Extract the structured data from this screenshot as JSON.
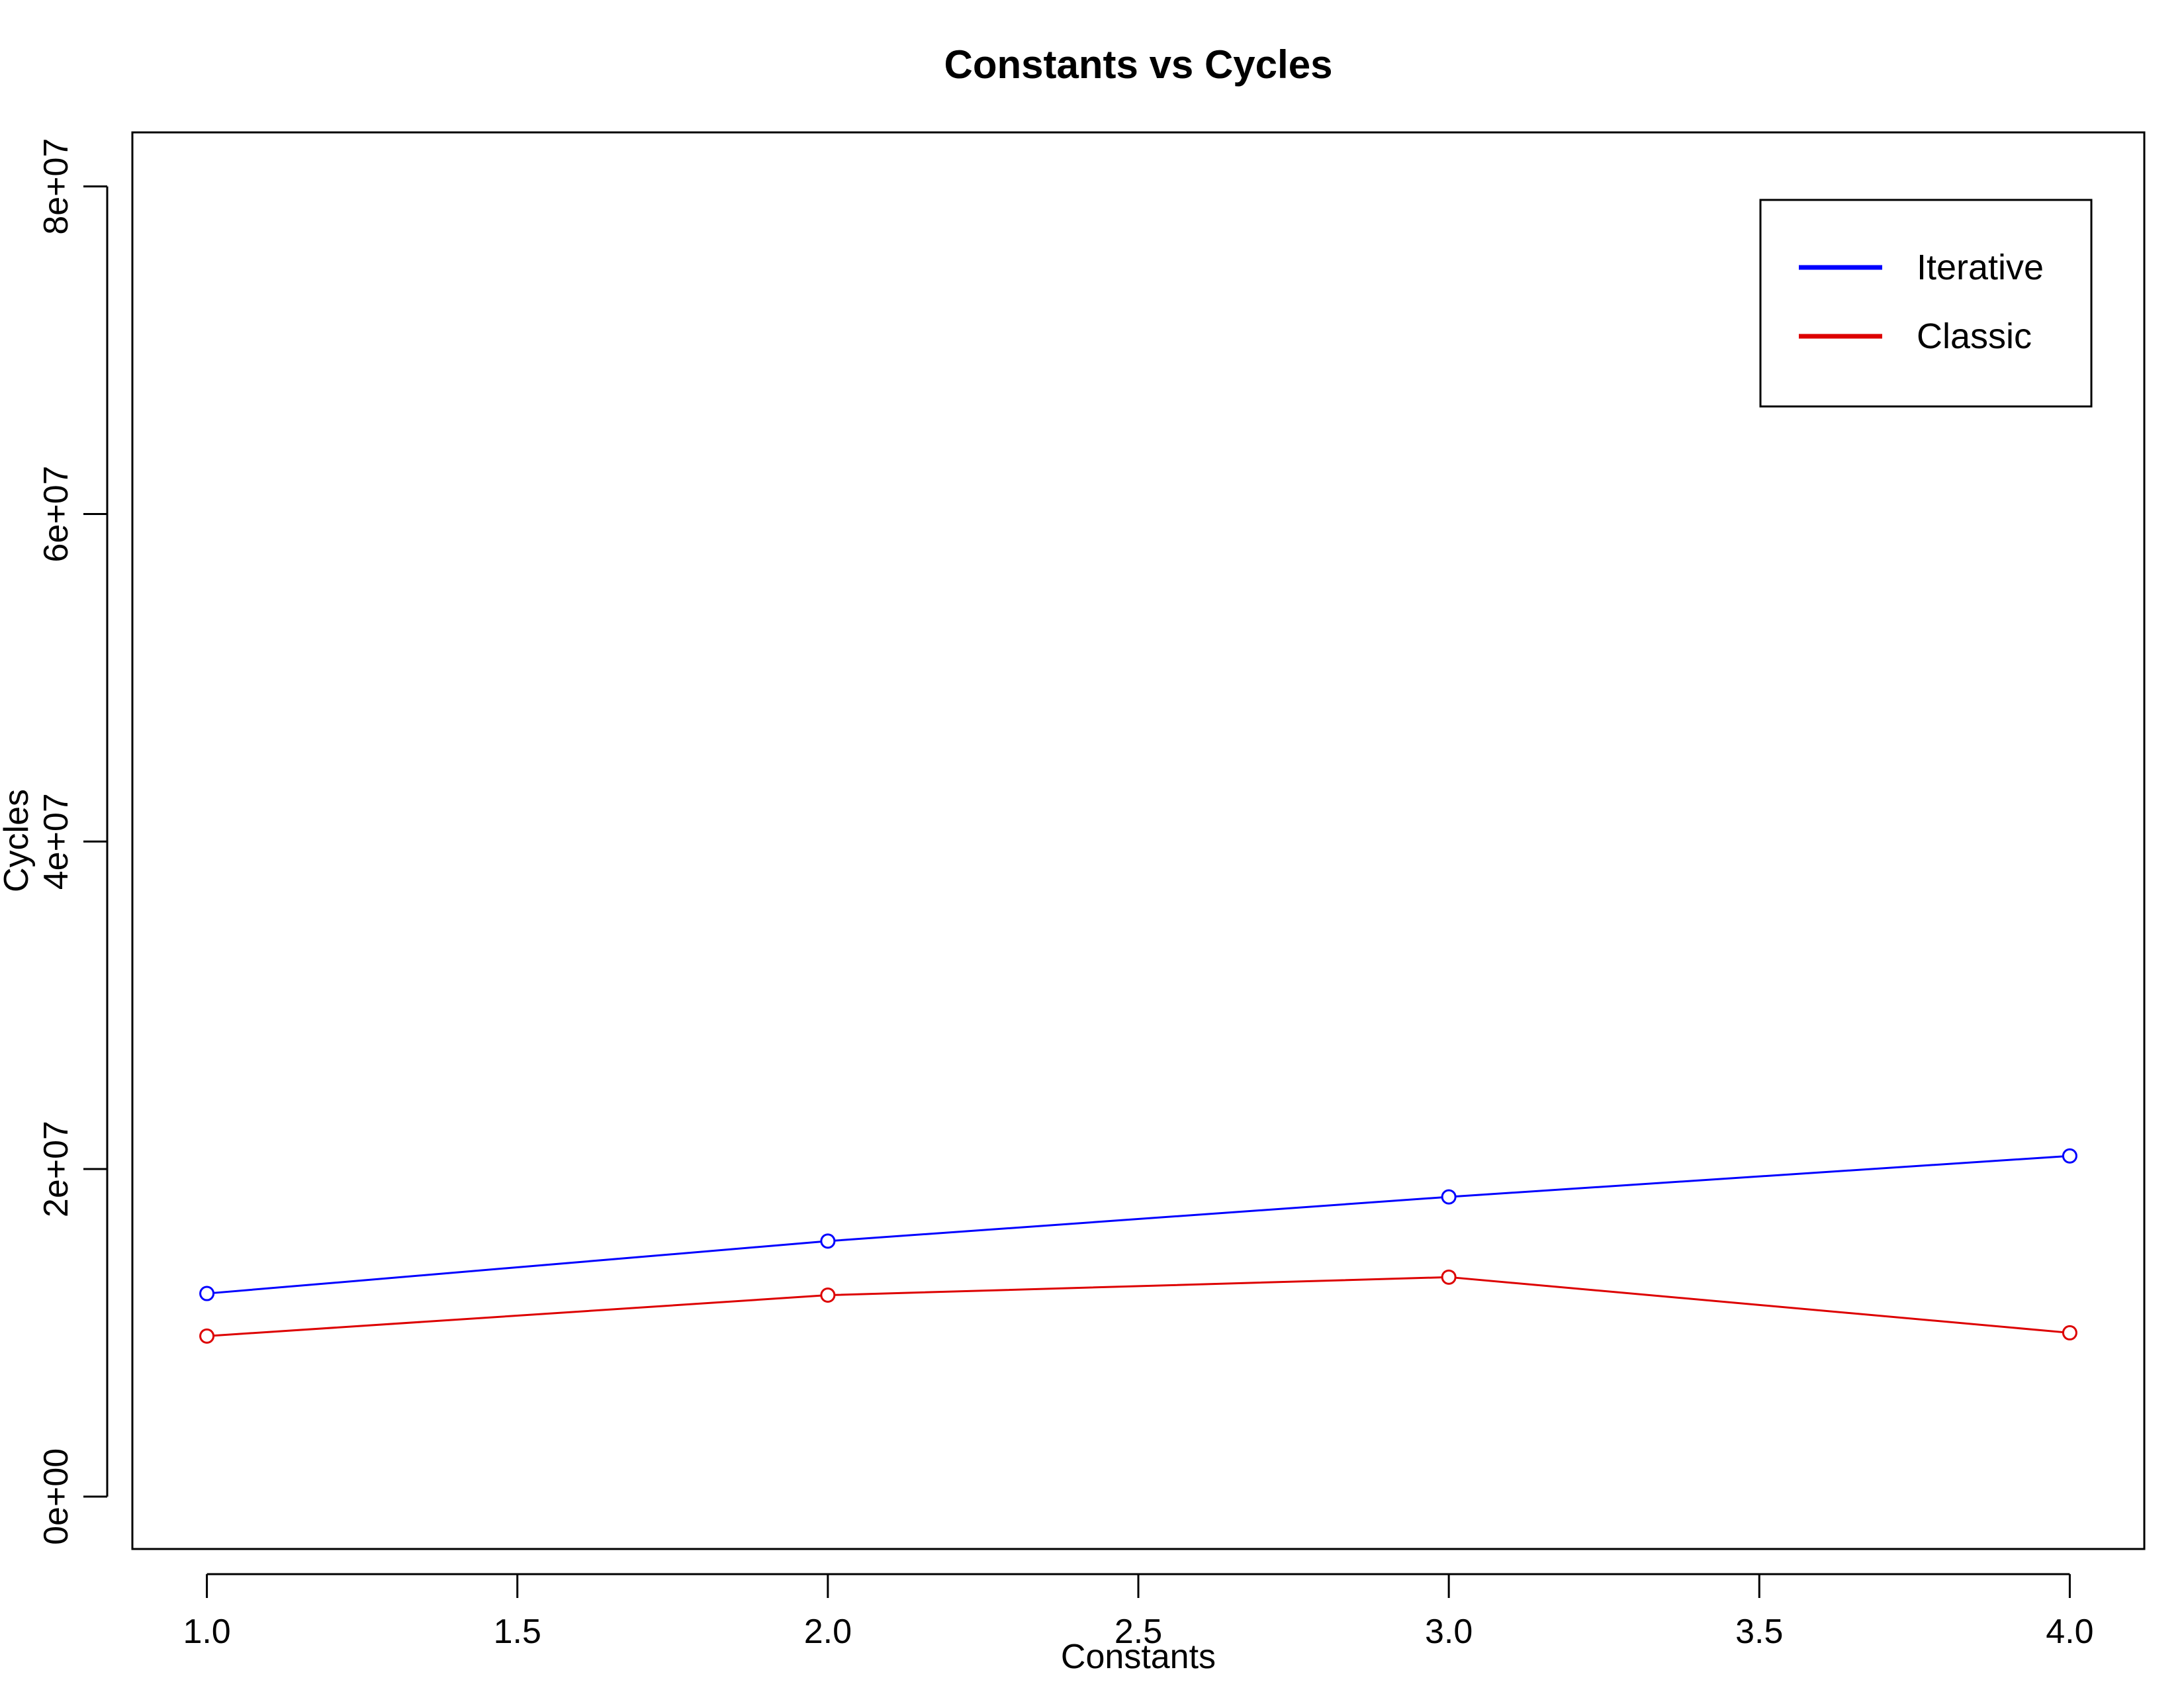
{
  "chart_data": {
    "type": "line",
    "title": "Constants vs Cycles",
    "xlabel": "Constants",
    "ylabel": "Cycles",
    "xlim": [
      0.88,
      4.12
    ],
    "ylim": [
      -3200000,
      83300000
    ],
    "x_ticks": [
      1.0,
      1.5,
      2.0,
      2.5,
      3.0,
      3.5,
      4.0
    ],
    "x_tick_labels": [
      "1.0",
      "1.5",
      "2.0",
      "2.5",
      "3.0",
      "3.5",
      "4.0"
    ],
    "y_ticks": [
      0,
      20000000,
      40000000,
      60000000,
      80000000
    ],
    "y_tick_labels": [
      "0e+00",
      "2e+07",
      "4e+07",
      "6e+07",
      "8e+07"
    ],
    "grid": false,
    "legend_position": "top-right",
    "x": [
      1,
      2,
      3,
      4
    ],
    "series": [
      {
        "name": "Iterative",
        "color": "#0000ff",
        "values": [
          12400000,
          15600000,
          18300000,
          20800000
        ]
      },
      {
        "name": "Classic",
        "color": "#dd0000",
        "values": [
          9800000,
          12300000,
          13400000,
          10000000
        ]
      }
    ]
  }
}
